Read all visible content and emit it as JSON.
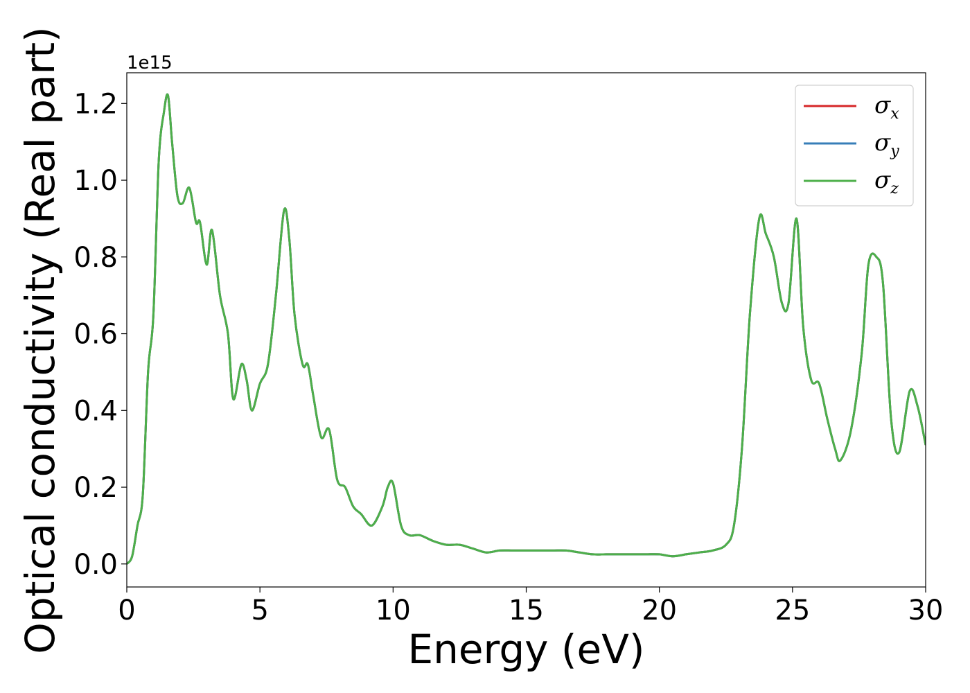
{
  "chart_data": {
    "type": "line",
    "xlabel": "Energy (eV)",
    "ylabel": "Optical conductivity (Real part)",
    "y_offset_label": "1e15",
    "xlim": [
      0,
      30
    ],
    "ylim": [
      -0.06,
      1.28
    ],
    "x_ticks": [
      0,
      5,
      10,
      15,
      20,
      25,
      30
    ],
    "x_tick_labels": [
      "0",
      "5",
      "10",
      "15",
      "20",
      "25",
      "30"
    ],
    "y_ticks": [
      0.0,
      0.2,
      0.4,
      0.6,
      0.8,
      1.0,
      1.2
    ],
    "y_tick_labels": [
      "0.0",
      "0.2",
      "0.4",
      "0.6",
      "0.8",
      "1.0",
      "1.2"
    ],
    "grid": false,
    "legend_position": "top-right",
    "x": [
      0,
      0.2,
      0.4,
      0.6,
      0.8,
      1.0,
      1.2,
      1.4,
      1.55,
      1.7,
      1.9,
      2.1,
      2.35,
      2.6,
      2.75,
      3.0,
      3.2,
      3.5,
      3.8,
      4.0,
      4.3,
      4.5,
      4.7,
      5.0,
      5.3,
      5.6,
      5.9,
      6.1,
      6.3,
      6.6,
      6.8,
      7.0,
      7.3,
      7.6,
      7.9,
      8.2,
      8.5,
      8.8,
      9.2,
      9.6,
      9.8,
      10.0,
      10.3,
      10.6,
      11.0,
      11.5,
      12.0,
      12.5,
      13.0,
      13.5,
      14.0,
      14.5,
      15.0,
      15.5,
      16.0,
      16.5,
      17.0,
      17.5,
      18.0,
      18.5,
      19.0,
      19.5,
      20.0,
      20.5,
      21.0,
      21.5,
      22.0,
      22.5,
      22.8,
      23.1,
      23.4,
      23.75,
      24.0,
      24.3,
      24.6,
      24.85,
      25.15,
      25.4,
      25.7,
      26.0,
      26.3,
      26.6,
      26.8,
      27.2,
      27.6,
      27.85,
      28.15,
      28.4,
      28.7,
      29.0,
      29.4,
      29.7,
      30.0
    ],
    "series": [
      {
        "name": "σx",
        "color": "#d62728",
        "values": [
          0.0,
          0.02,
          0.1,
          0.18,
          0.5,
          0.65,
          1.05,
          1.18,
          1.22,
          1.1,
          0.96,
          0.94,
          0.98,
          0.89,
          0.89,
          0.78,
          0.87,
          0.7,
          0.6,
          0.43,
          0.52,
          0.48,
          0.4,
          0.47,
          0.52,
          0.7,
          0.92,
          0.85,
          0.65,
          0.52,
          0.52,
          0.44,
          0.33,
          0.35,
          0.22,
          0.2,
          0.15,
          0.13,
          0.1,
          0.15,
          0.2,
          0.21,
          0.1,
          0.075,
          0.075,
          0.06,
          0.05,
          0.05,
          0.04,
          0.03,
          0.035,
          0.035,
          0.035,
          0.035,
          0.035,
          0.035,
          0.03,
          0.025,
          0.025,
          0.025,
          0.025,
          0.025,
          0.025,
          0.02,
          0.025,
          0.03,
          0.035,
          0.05,
          0.1,
          0.3,
          0.65,
          0.9,
          0.86,
          0.8,
          0.68,
          0.68,
          0.9,
          0.62,
          0.48,
          0.47,
          0.38,
          0.3,
          0.27,
          0.35,
          0.55,
          0.78,
          0.8,
          0.73,
          0.38,
          0.29,
          0.45,
          0.41,
          0.31
        ]
      },
      {
        "name": "σy",
        "color": "#377eb8",
        "values": [
          0.0,
          0.02,
          0.1,
          0.18,
          0.5,
          0.65,
          1.05,
          1.18,
          1.22,
          1.1,
          0.96,
          0.94,
          0.98,
          0.89,
          0.89,
          0.78,
          0.87,
          0.7,
          0.6,
          0.43,
          0.52,
          0.48,
          0.4,
          0.47,
          0.52,
          0.7,
          0.92,
          0.85,
          0.65,
          0.52,
          0.52,
          0.44,
          0.33,
          0.35,
          0.22,
          0.2,
          0.15,
          0.13,
          0.1,
          0.15,
          0.2,
          0.21,
          0.1,
          0.075,
          0.075,
          0.06,
          0.05,
          0.05,
          0.04,
          0.03,
          0.035,
          0.035,
          0.035,
          0.035,
          0.035,
          0.035,
          0.03,
          0.025,
          0.025,
          0.025,
          0.025,
          0.025,
          0.025,
          0.02,
          0.025,
          0.03,
          0.035,
          0.05,
          0.1,
          0.3,
          0.65,
          0.9,
          0.86,
          0.8,
          0.68,
          0.68,
          0.9,
          0.62,
          0.48,
          0.47,
          0.38,
          0.3,
          0.27,
          0.35,
          0.55,
          0.78,
          0.8,
          0.73,
          0.38,
          0.29,
          0.45,
          0.41,
          0.31
        ]
      },
      {
        "name": "σz",
        "color": "#4daf4a",
        "values": [
          0.0,
          0.02,
          0.1,
          0.18,
          0.5,
          0.65,
          1.05,
          1.18,
          1.22,
          1.1,
          0.96,
          0.94,
          0.98,
          0.89,
          0.89,
          0.78,
          0.87,
          0.7,
          0.6,
          0.43,
          0.52,
          0.48,
          0.4,
          0.47,
          0.52,
          0.7,
          0.92,
          0.85,
          0.65,
          0.52,
          0.52,
          0.44,
          0.33,
          0.35,
          0.22,
          0.2,
          0.15,
          0.13,
          0.1,
          0.15,
          0.2,
          0.21,
          0.1,
          0.075,
          0.075,
          0.06,
          0.05,
          0.05,
          0.04,
          0.03,
          0.035,
          0.035,
          0.035,
          0.035,
          0.035,
          0.035,
          0.03,
          0.025,
          0.025,
          0.025,
          0.025,
          0.025,
          0.025,
          0.02,
          0.025,
          0.03,
          0.035,
          0.05,
          0.1,
          0.3,
          0.65,
          0.9,
          0.86,
          0.8,
          0.68,
          0.68,
          0.9,
          0.62,
          0.48,
          0.47,
          0.38,
          0.3,
          0.27,
          0.35,
          0.55,
          0.78,
          0.8,
          0.73,
          0.38,
          0.29,
          0.45,
          0.41,
          0.31
        ]
      }
    ],
    "legend": [
      {
        "symbol": "σ",
        "sub": "x",
        "color": "#d62728"
      },
      {
        "symbol": "σ",
        "sub": "y",
        "color": "#377eb8"
      },
      {
        "symbol": "σ",
        "sub": "z",
        "color": "#4daf4a"
      }
    ]
  }
}
